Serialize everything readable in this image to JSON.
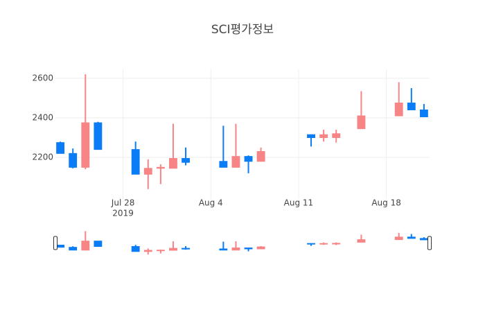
{
  "chart_data": {
    "type": "candlestick",
    "title": "SCI평가정보",
    "x": [
      "2019-07-23",
      "2019-07-24",
      "2019-07-25",
      "2019-07-26",
      "2019-07-29",
      "2019-07-30",
      "2019-07-31",
      "2019-08-01",
      "2019-08-02",
      "2019-08-05",
      "2019-08-06",
      "2019-08-07",
      "2019-08-08",
      "2019-08-12",
      "2019-08-13",
      "2019-08-14",
      "2019-08-16",
      "2019-08-19",
      "2019-08-20",
      "2019-08-21"
    ],
    "open": [
      2275,
      2220,
      2150,
      2375,
      2240,
      2115,
      2145,
      2145,
      2195,
      2180,
      2150,
      2205,
      2180,
      2315,
      2300,
      2300,
      2345,
      2410,
      2475,
      2440
    ],
    "high": [
      2280,
      2245,
      2620,
      2380,
      2280,
      2190,
      2165,
      2370,
      2250,
      2360,
      2370,
      2210,
      2250,
      2315,
      2340,
      2340,
      2535,
      2580,
      2550,
      2470
    ],
    "low": [
      2220,
      2145,
      2140,
      2240,
      2115,
      2040,
      2065,
      2145,
      2160,
      2150,
      2150,
      2120,
      2180,
      2255,
      2280,
      2275,
      2345,
      2410,
      2440,
      2405
    ],
    "close": [
      2220,
      2150,
      2375,
      2240,
      2115,
      2145,
      2150,
      2195,
      2175,
      2150,
      2205,
      2180,
      2230,
      2300,
      2315,
      2320,
      2410,
      2475,
      2440,
      2405
    ],
    "increasing_color": "#f78585",
    "decreasing_color": "#0a7cf5",
    "xlim": [
      "2019-07-22",
      "2019-08-22"
    ],
    "xticks": [
      {
        "value": "2019-07-28",
        "label": "Jul 28"
      },
      {
        "value": "2019-08-04",
        "label": "Aug 4"
      },
      {
        "value": "2019-08-11",
        "label": "Aug 11"
      },
      {
        "value": "2019-08-18",
        "label": "Aug 18"
      }
    ],
    "x_year_label": "2019",
    "ylim": [
      1990,
      2645
    ],
    "yticks": [
      2200,
      2400,
      2600
    ],
    "grid": true,
    "rangeslider": true
  }
}
